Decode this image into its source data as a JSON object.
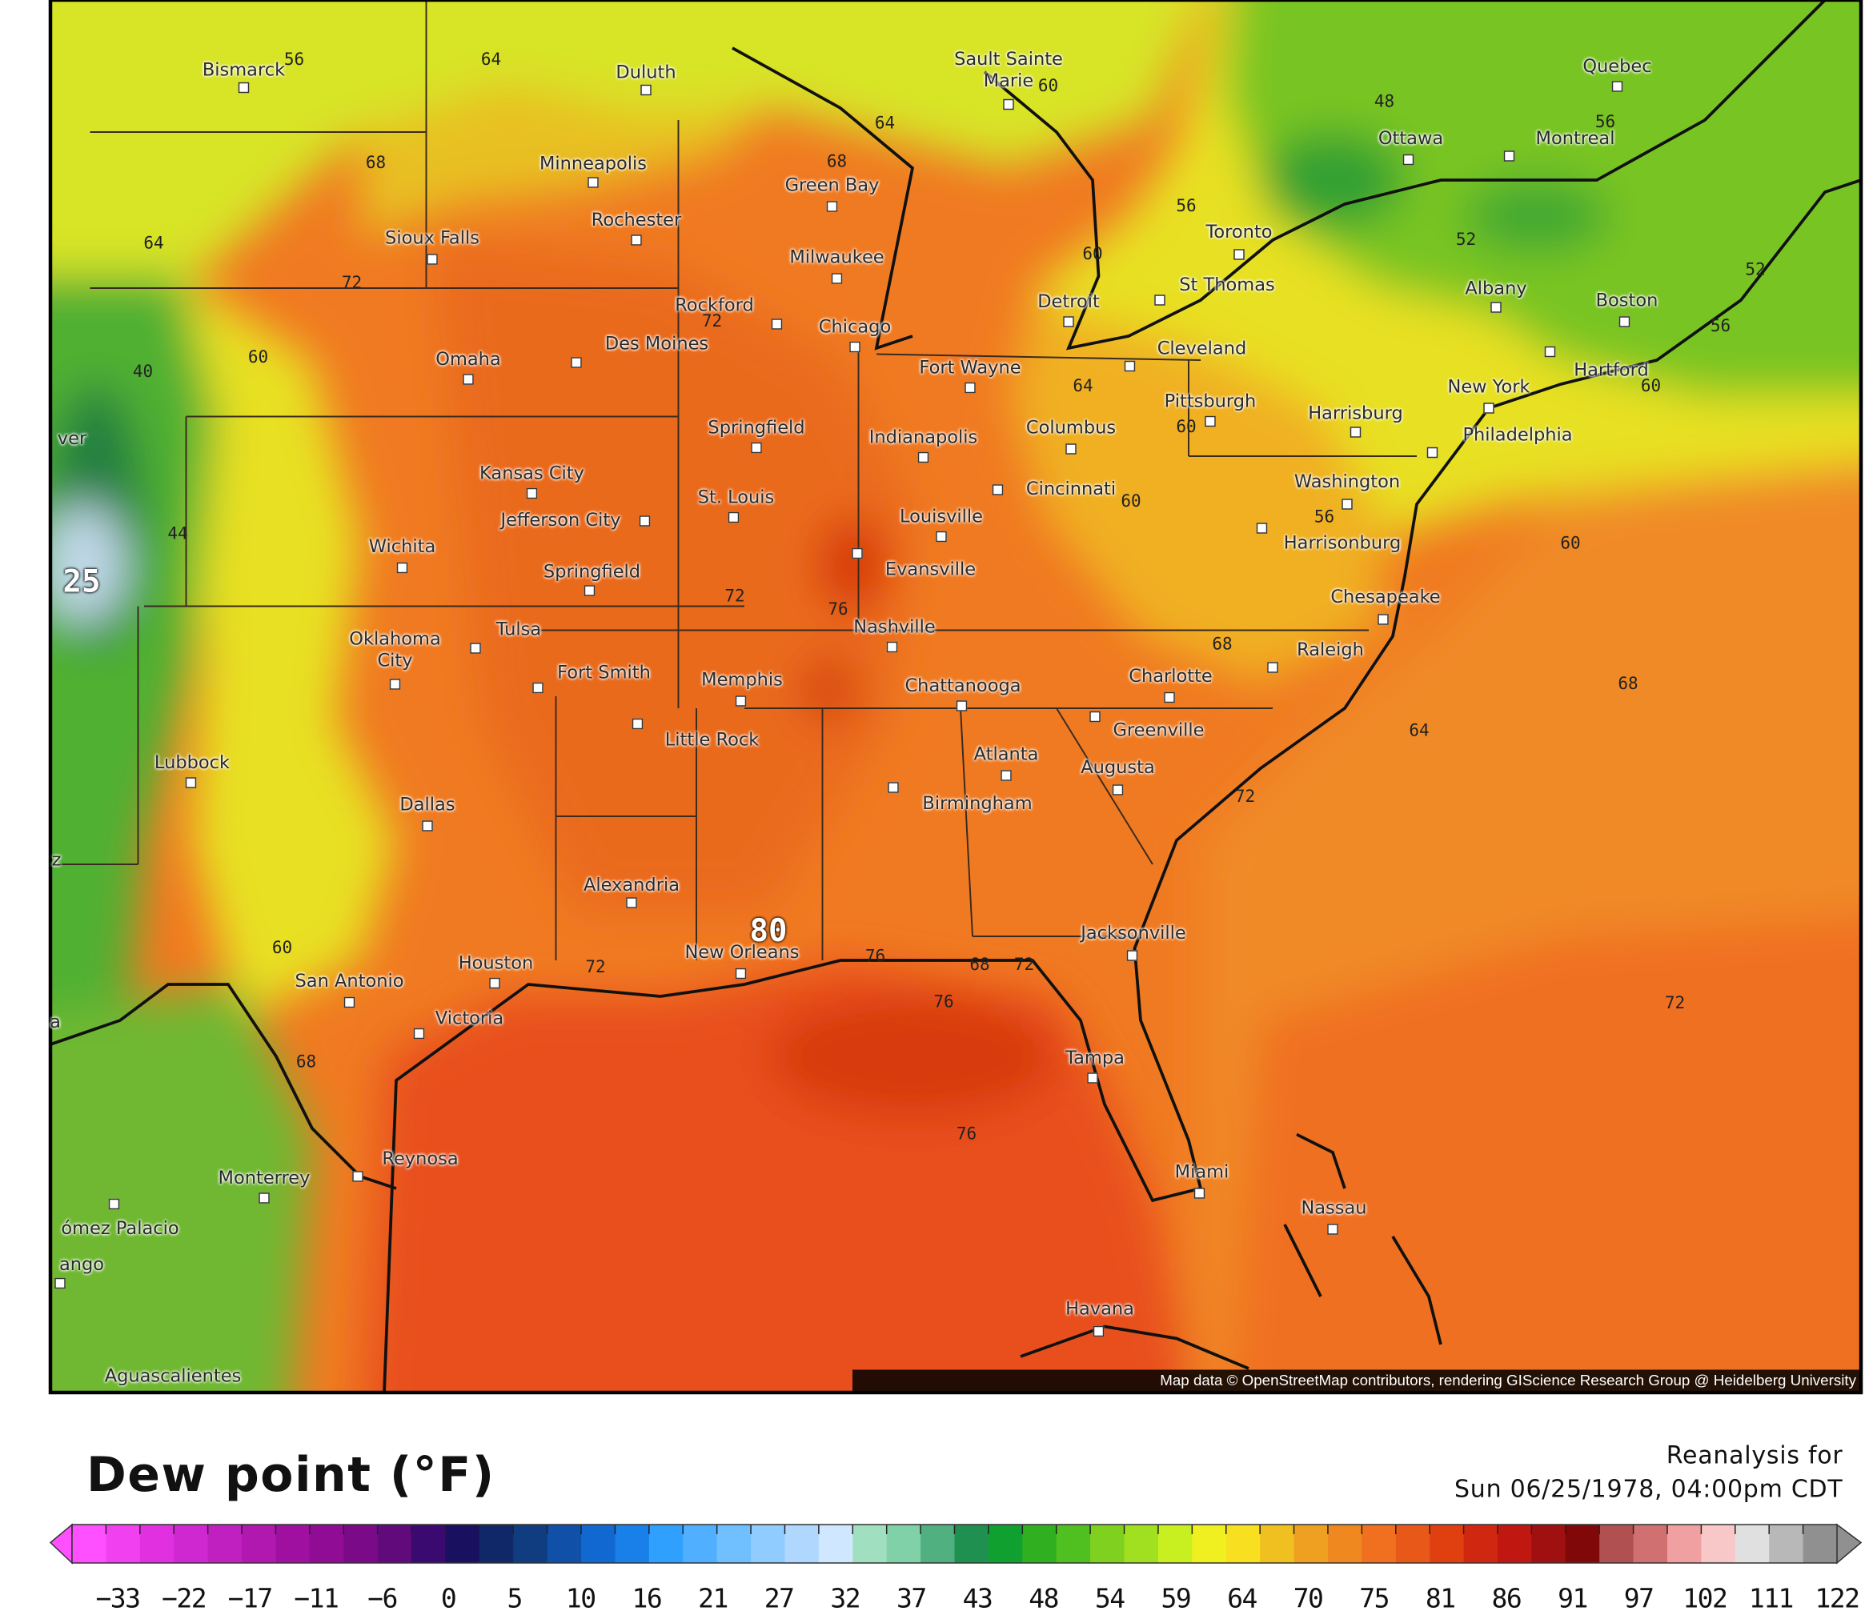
{
  "map": {
    "cities": [
      "Bismarck",
      "Duluth",
      "Sault Sainte Marie",
      "Quebec",
      "Ottawa",
      "Montreal",
      "Minneapolis",
      "Green Bay",
      "Rochester",
      "Sioux Falls",
      "Milwaukee",
      "Toronto",
      "St Thomas",
      "Albany",
      "Boston",
      "Detroit",
      "Rockford",
      "Chicago",
      "Des Moines",
      "Omaha",
      "Cleveland",
      "Fort Wayne",
      "Hartford",
      "New York",
      "Pittsburgh",
      "Harrisburg",
      "Springfield",
      "Indianapolis",
      "Columbus",
      "Philadelphia",
      "Kansas City",
      "St. Louis",
      "Cincinnati",
      "Washington",
      "Jefferson City",
      "Louisville",
      "Harrisonburg",
      "Wichita",
      "Evansville",
      "Springfield",
      "Chesapeake",
      "Nashville",
      "Oklahoma City",
      "Tulsa",
      "Fort Smith",
      "Raleigh",
      "Memphis",
      "Charlotte",
      "Chattanooga",
      "Little Rock",
      "Greenville",
      "Lubbock",
      "Atlanta",
      "Augusta",
      "Dallas",
      "Birmingham",
      "Alexandria",
      "Jacksonville",
      "New Orleans",
      "Houston",
      "San Antonio",
      "Victoria",
      "Tampa",
      "Reynosa",
      "Monterrey",
      "Miami",
      "Nassau",
      "ómez Palacio",
      "ango",
      "Havana",
      "Aguascalientes",
      "ver",
      "z",
      "a"
    ],
    "contour_labels": [
      56,
      64,
      60,
      48,
      56,
      64,
      68,
      68,
      56,
      52,
      64,
      60,
      52,
      72,
      72,
      56,
      60,
      40,
      64,
      60,
      60,
      60,
      56,
      44,
      60,
      25,
      72,
      76,
      68,
      68,
      64,
      72,
      80,
      60,
      72,
      76,
      68,
      72,
      76,
      72,
      68,
      76
    ],
    "attribution": "Map data © OpenStreetMap contributors, rendering GIScience Research Group @ Heidelberg University"
  },
  "legend": {
    "title": "Dew point (°F)",
    "caption": [
      "Reanalysis for",
      "Sun 06/25/1978, 04:00pm CDT"
    ],
    "labels": [
      "−33",
      "−22",
      "−17",
      "−11",
      "−6",
      "0",
      "5",
      "10",
      "16",
      "21",
      "27",
      "32",
      "37",
      "43",
      "48",
      "54",
      "59",
      "64",
      "70",
      "75",
      "81",
      "86",
      "91",
      "97",
      "102",
      "111",
      "122"
    ],
    "colors": [
      "#ff50ff",
      "#f040f0",
      "#e030e0",
      "#d028d0",
      "#c020c0",
      "#b018b0",
      "#a010a0",
      "#900c94",
      "#7a0a88",
      "#600a7c",
      "#3a0a70",
      "#1a1060",
      "#102868",
      "#103c80",
      "#1050a8",
      "#1068d0",
      "#1880e8",
      "#30a0ff",
      "#50b0ff",
      "#70c0ff",
      "#90ccff",
      "#b0d8ff",
      "#d0e8ff",
      "#a0e0c0",
      "#80d0a8",
      "#50b080",
      "#209050",
      "#10a030",
      "#30b020",
      "#50c020",
      "#80d020",
      "#a0e020",
      "#c8f020",
      "#f0f020",
      "#f8e020",
      "#f0c020",
      "#f0a020",
      "#f08820",
      "#f07020",
      "#e85818",
      "#e04010",
      "#d02810",
      "#c01810",
      "#a01010",
      "#800808",
      "#b05050",
      "#d07070",
      "#f0a0a0",
      "#f8c8c8",
      "#e0e0e0",
      "#b8b8b8",
      "#909090"
    ]
  }
}
